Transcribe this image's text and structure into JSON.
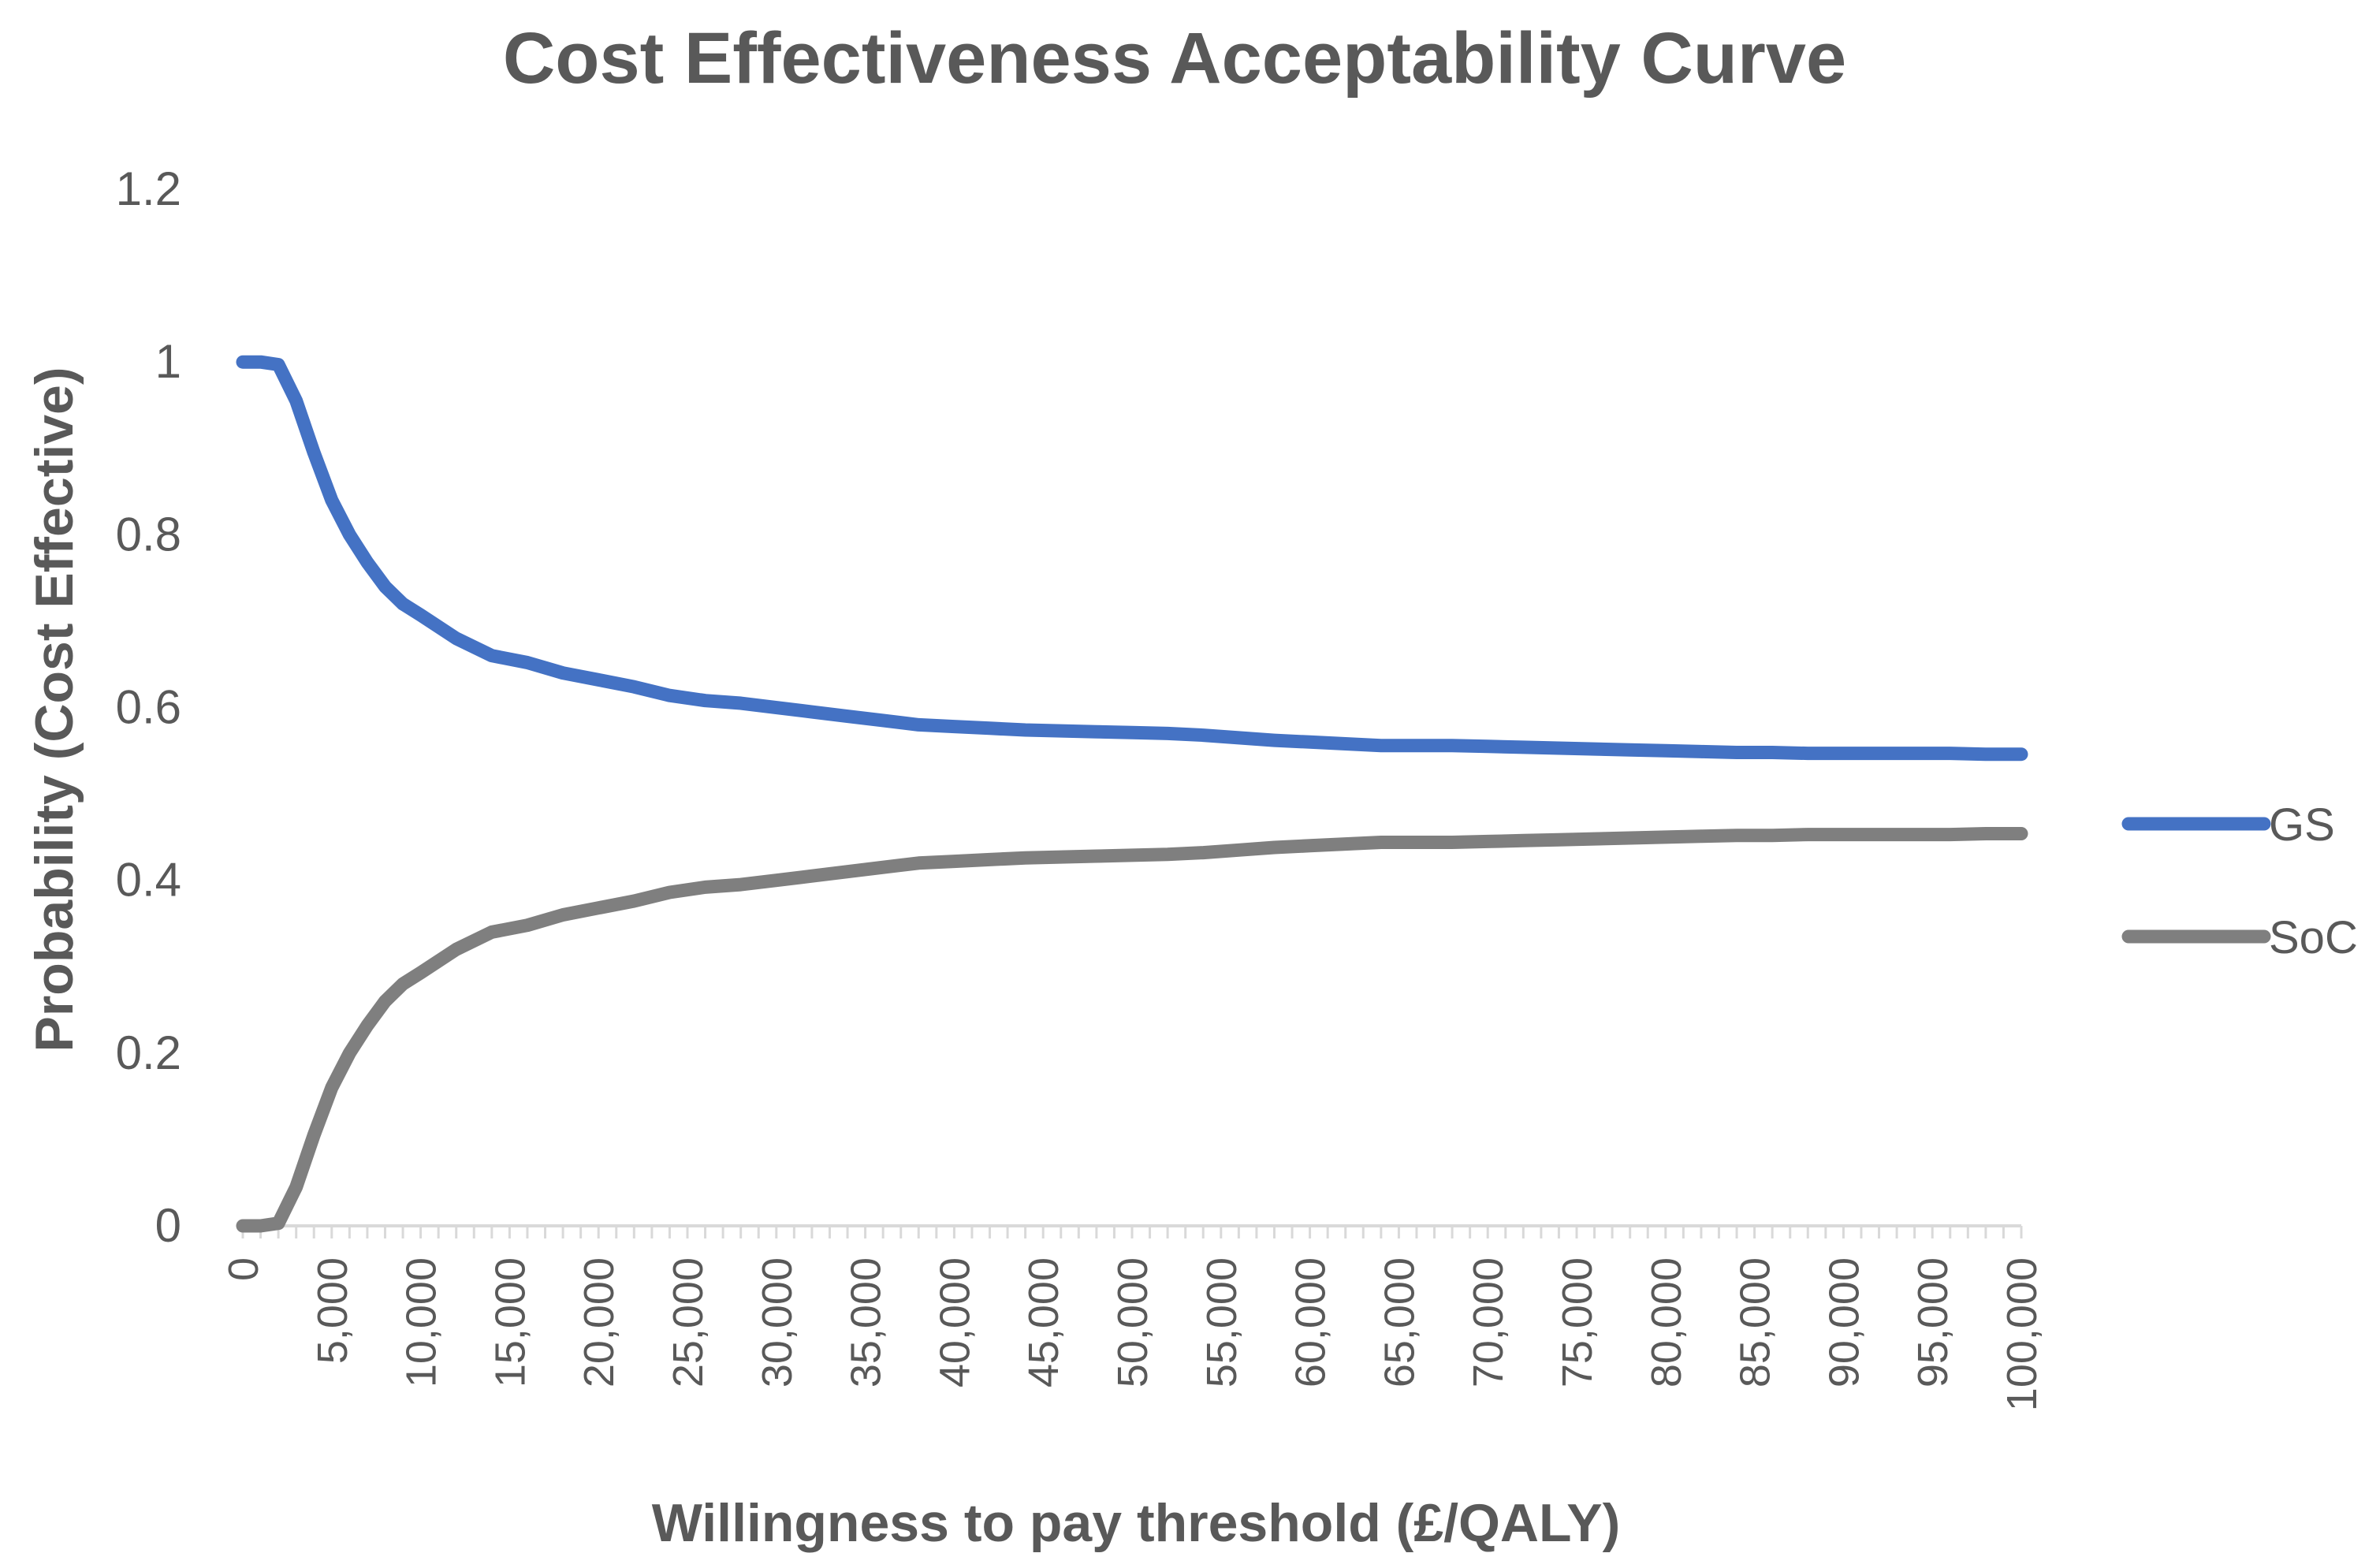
{
  "chart_data": {
    "type": "line",
    "title": "Cost Effectiveness Acceptability Curve",
    "xlabel": "Willingness to pay threshold (£/QALY)",
    "ylabel": "Probability (Cost Effective)",
    "xlim": [
      0,
      100000
    ],
    "ylim": [
      0,
      1.2
    ],
    "y_ticks": [
      "0",
      "0.2",
      "0.4",
      "0.6",
      "0.8",
      "1",
      "1.2"
    ],
    "x_tick_labels": [
      "0",
      "5,000",
      "10,000",
      "15,000",
      "20,000",
      "25,000",
      "30,000",
      "35,000",
      "40,000",
      "45,000",
      "50,000",
      "55,000",
      "60,000",
      "65,000",
      "70,000",
      "75,000",
      "80,000",
      "85,000",
      "90,000",
      "95,000",
      "100,000"
    ],
    "grid": false,
    "legend_position": "right",
    "x": [
      0,
      1000,
      2000,
      3000,
      4000,
      5000,
      6000,
      7000,
      8000,
      9000,
      10000,
      12000,
      14000,
      16000,
      18000,
      20000,
      22000,
      24000,
      26000,
      28000,
      30000,
      32000,
      34000,
      36000,
      38000,
      40000,
      42000,
      44000,
      46000,
      48000,
      50000,
      52000,
      54000,
      56000,
      58000,
      60000,
      62000,
      64000,
      66000,
      68000,
      70000,
      72000,
      74000,
      76000,
      78000,
      80000,
      82000,
      84000,
      86000,
      88000,
      90000,
      92000,
      94000,
      96000,
      98000,
      100000
    ],
    "series": [
      {
        "name": "GS",
        "color": "#4472C4",
        "values": [
          1.0,
          1.0,
          0.997,
          0.955,
          0.895,
          0.84,
          0.8,
          0.768,
          0.74,
          0.72,
          0.707,
          0.68,
          0.66,
          0.652,
          0.64,
          0.632,
          0.624,
          0.614,
          0.608,
          0.605,
          0.6,
          0.595,
          0.59,
          0.585,
          0.58,
          0.578,
          0.576,
          0.574,
          0.573,
          0.572,
          0.571,
          0.57,
          0.568,
          0.565,
          0.562,
          0.56,
          0.558,
          0.556,
          0.556,
          0.556,
          0.555,
          0.554,
          0.553,
          0.552,
          0.551,
          0.55,
          0.549,
          0.548,
          0.548,
          0.547,
          0.547,
          0.547,
          0.547,
          0.547,
          0.546,
          0.546
        ]
      },
      {
        "name": "SoC",
        "color": "#7F7F7F",
        "values": [
          0.0,
          0.0,
          0.003,
          0.045,
          0.105,
          0.16,
          0.2,
          0.232,
          0.26,
          0.28,
          0.293,
          0.32,
          0.34,
          0.348,
          0.36,
          0.368,
          0.376,
          0.386,
          0.392,
          0.395,
          0.4,
          0.405,
          0.41,
          0.415,
          0.42,
          0.422,
          0.424,
          0.426,
          0.427,
          0.428,
          0.429,
          0.43,
          0.432,
          0.435,
          0.438,
          0.44,
          0.442,
          0.444,
          0.444,
          0.444,
          0.445,
          0.446,
          0.447,
          0.448,
          0.449,
          0.45,
          0.451,
          0.452,
          0.452,
          0.453,
          0.453,
          0.453,
          0.453,
          0.453,
          0.454,
          0.454
        ]
      }
    ]
  }
}
